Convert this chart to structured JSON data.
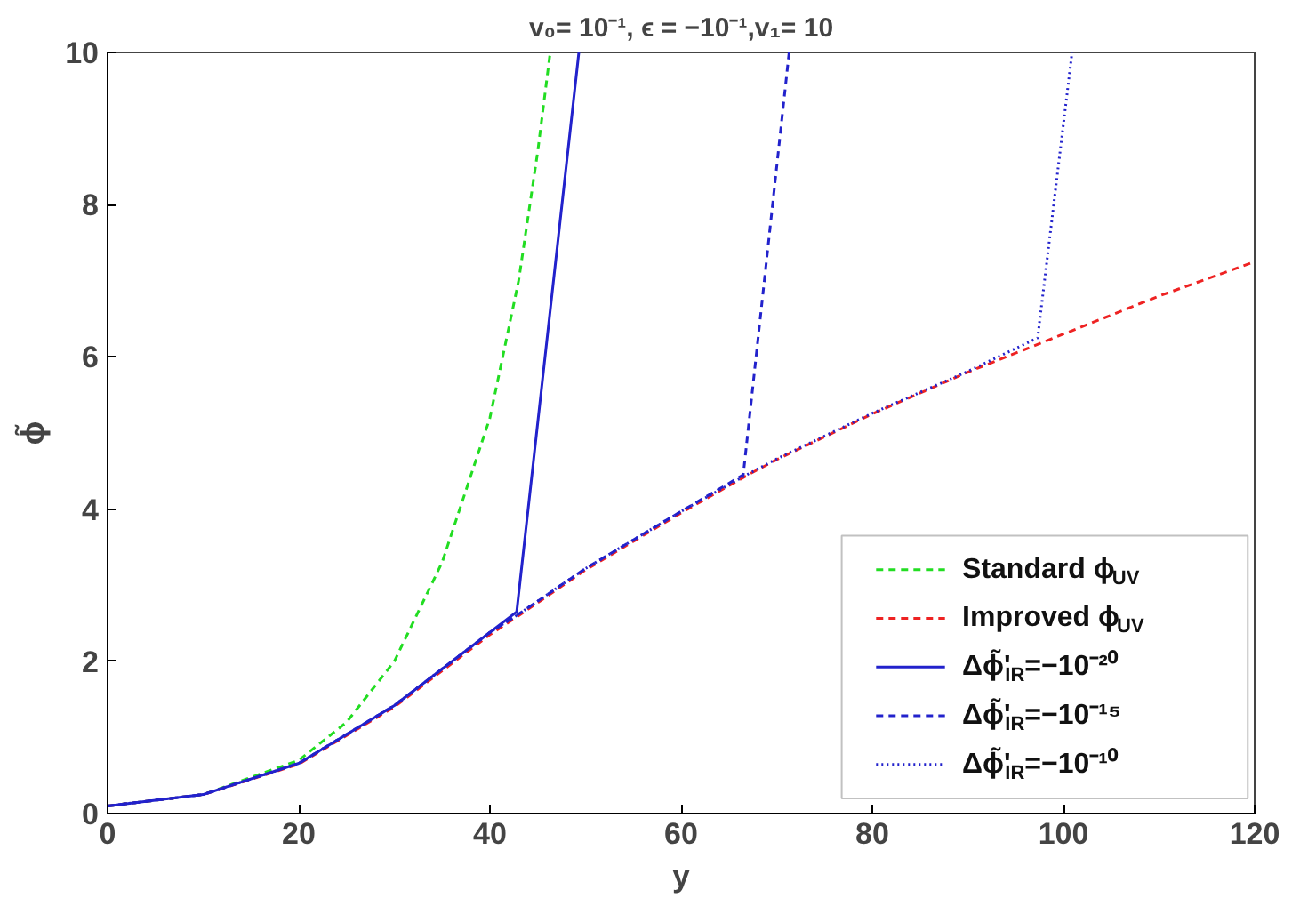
{
  "chart_data": {
    "type": "line",
    "title": "v₀= 10⁻¹, ϵ = −10⁻¹,v₁= 10",
    "xlabel": "y",
    "ylabel": "ϕ̃",
    "xlim": [
      0,
      120
    ],
    "ylim": [
      0,
      10
    ],
    "xticks": [
      0,
      20,
      40,
      60,
      80,
      100,
      120
    ],
    "yticks": [
      0,
      2,
      4,
      6,
      8,
      10
    ],
    "legend": "bottom right",
    "series": [
      {
        "name": "Standard ϕ$_{UV}$",
        "color": "#22dd22",
        "line_style": "dashed",
        "x": [
          0,
          10,
          20,
          25,
          30,
          35,
          40,
          43,
          45,
          46.3
        ],
        "values": [
          0.1,
          0.25,
          0.7,
          1.2,
          2.0,
          3.3,
          5.2,
          7.0,
          8.7,
          10
        ]
      },
      {
        "name": "Improved ϕ$_{UV}$",
        "color": "#ee2222",
        "line_style": "dashed",
        "x": [
          0,
          10,
          20,
          30,
          40,
          43,
          50,
          60,
          67,
          70,
          80,
          90,
          98,
          100,
          110,
          120
        ],
        "values": [
          0.1,
          0.25,
          0.65,
          1.4,
          2.35,
          2.6,
          3.2,
          3.95,
          4.45,
          4.65,
          5.25,
          5.8,
          6.2,
          6.3,
          6.8,
          7.25
        ]
      },
      {
        "name": "Δϕ̃'$_{IR}$=−10⁻²⁰",
        "color": "#2222cc",
        "line_style": "solid",
        "x": [
          0,
          10,
          20,
          30,
          40,
          42.8,
          49.3
        ],
        "values": [
          0.1,
          0.25,
          0.66,
          1.42,
          2.38,
          2.65,
          10
        ]
      },
      {
        "name": "Δϕ̃'$_{IR}$=−10⁻¹⁵",
        "color": "#2222cc",
        "line_style": "dashed",
        "x": [
          0,
          10,
          20,
          30,
          40,
          43,
          50,
          60,
          66.5,
          71.3
        ],
        "values": [
          0.1,
          0.25,
          0.66,
          1.42,
          2.38,
          2.62,
          3.22,
          3.97,
          4.45,
          10
        ]
      },
      {
        "name": "Δϕ̃'$_{IR}$=−10⁻¹⁰",
        "color": "#2222cc",
        "line_style": "dotted",
        "x": [
          0,
          10,
          20,
          30,
          40,
          43,
          50,
          60,
          67,
          70,
          80,
          90,
          97.3,
          100.9
        ],
        "values": [
          0.1,
          0.25,
          0.66,
          1.42,
          2.38,
          2.62,
          3.22,
          3.97,
          4.46,
          4.66,
          5.26,
          5.81,
          6.25,
          10
        ]
      }
    ]
  }
}
